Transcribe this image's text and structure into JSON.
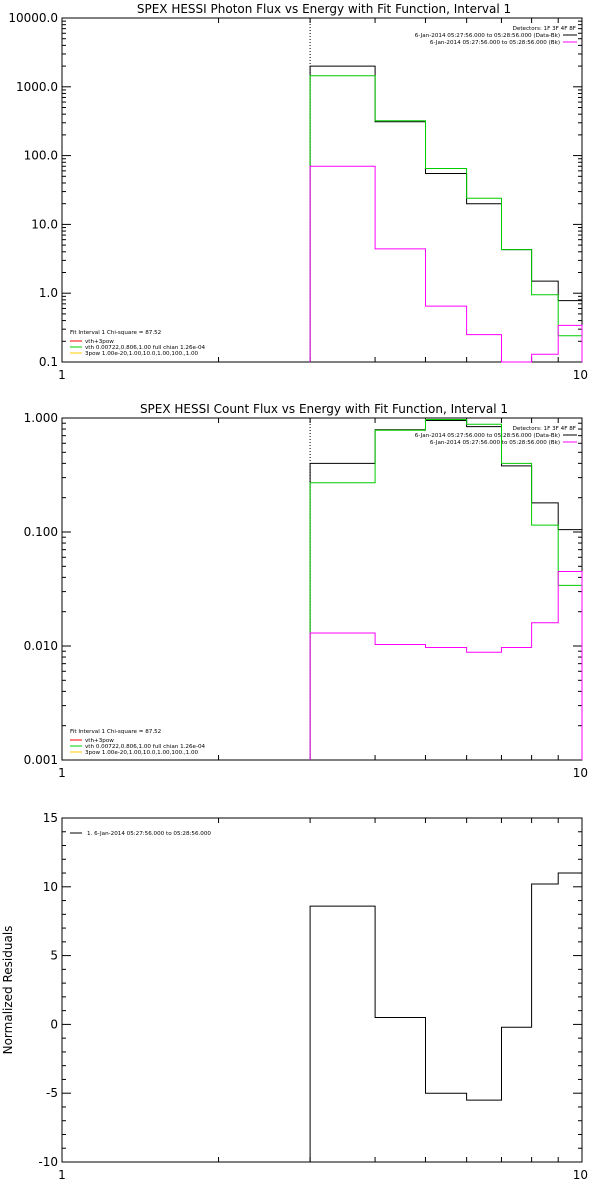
{
  "charts": [
    {
      "title": "SPEX HESSI Photon Flux vs Energy with Fit Function, Interval 1",
      "detectors": "Detectors: 1F 3F 4F 8F",
      "legend_right": [
        {
          "text": "6-Jan-2014 05:27:56.000 to 05:28:56.000 (Data-Bk)",
          "color": "#000000"
        },
        {
          "text": "6-Jan-2014 05:27:56.000 to 05:28:56.000 (Bk)",
          "color": "#ff00ff"
        }
      ],
      "legend_left": [
        {
          "text": "Fit Interval  1    Chi-square = 87.52",
          "color": null
        },
        {
          "text": "vth+3pow",
          "color": "#ff0000"
        },
        {
          "text": "vth 0.00722,0.806,1.00   full chian 1.26e-04",
          "color": "#00cc00"
        },
        {
          "text": "3pow 1.00e-20,1.00,10.0,1.00,100.,1.00",
          "color": "#ffcc00"
        }
      ],
      "ytick_labels": [
        "0.1",
        "1.0",
        "10.0",
        "100.0",
        "1000.0",
        "10000.0"
      ],
      "xtick_labels": [
        "1",
        "10"
      ]
    },
    {
      "title": "SPEX HESSI Count Flux vs Energy with Fit Function, Interval 1",
      "detectors": "Detectors: 1F 3F 4F 8F",
      "legend_right": [
        {
          "text": "6-Jan-2014 05:27:56.000 to 05:28:56.000 (Data-Bk)",
          "color": "#000000"
        },
        {
          "text": "6-Jan-2014 05:27:56.000 to 05:28:56.000 (Bk)",
          "color": "#ff00ff"
        }
      ],
      "legend_left": [
        {
          "text": "Fit Interval  1    Chi-square = 87.52",
          "color": null
        },
        {
          "text": "vth+3pow",
          "color": "#ff0000"
        },
        {
          "text": "vth 0.00722,0.806,1.00   full chian 1.26e-04",
          "color": "#00cc00"
        },
        {
          "text": "3pow 1.00e-20,1.00,10.0,1.00,100.,1.00",
          "color": "#ffcc00"
        }
      ],
      "ytick_labels": [
        "0.001",
        "0.010",
        "0.100",
        "1.000"
      ],
      "xtick_labels": [
        "1",
        "10"
      ]
    },
    {
      "title": "",
      "ylabel": "Normalized Residuals",
      "legend_left": [
        {
          "text": "1.  6-Jan-2014 05:27:56.000 to 05:28:56.000",
          "color": "#000000"
        }
      ],
      "ytick_labels": [
        "-10",
        "-5",
        "0",
        "5",
        "10",
        "15"
      ],
      "xtick_labels": [
        "1",
        "10"
      ]
    }
  ],
  "chart_data": [
    {
      "type": "line",
      "title": "SPEX HESSI Photon Flux vs Energy with Fit Function, Interval 1",
      "xscale": "log",
      "yscale": "log",
      "xlim": [
        1,
        10
      ],
      "ylim": [
        0.1,
        10000
      ],
      "marker_x": 3,
      "bin_edges": [
        3,
        4,
        5,
        6,
        7,
        8,
        9,
        10
      ],
      "series": [
        {
          "name": "6-Jan-2014 05:27:56.000 to 05:28:56.000 (Data-Bk)",
          "color": "#000000",
          "values": [
            2000,
            310,
            55,
            20,
            4.3,
            1.5,
            0.78
          ]
        },
        {
          "name": "vth 0.00722,0.806,1.00   full chian 1.26e-04",
          "color": "#00cc00",
          "values": [
            1450,
            320,
            65,
            24,
            4.3,
            0.95,
            0.24
          ]
        },
        {
          "name": "6-Jan-2014 05:27:56.000 to 05:28:56.000 (Bk)",
          "color": "#ff00ff",
          "values": [
            70,
            4.4,
            0.65,
            0.25,
            0.1,
            0.13,
            0.34
          ]
        }
      ]
    },
    {
      "type": "line",
      "title": "SPEX HESSI Count Flux vs Energy with Fit Function, Interval 1",
      "xscale": "log",
      "yscale": "log",
      "xlim": [
        1,
        10
      ],
      "ylim": [
        0.001,
        1.0
      ],
      "marker_x": 3,
      "bin_edges": [
        3,
        4,
        5,
        6,
        7,
        8,
        9,
        10
      ],
      "series": [
        {
          "name": "6-Jan-2014 05:27:56.000 to 05:28:56.000 (Data-Bk)",
          "color": "#000000",
          "values": [
            0.4,
            0.79,
            0.95,
            0.84,
            0.38,
            0.18,
            0.105
          ]
        },
        {
          "name": "vth 0.00722,0.806,1.00   full chian 1.26e-04",
          "color": "#00cc00",
          "values": [
            0.27,
            0.78,
            0.97,
            0.88,
            0.4,
            0.115,
            0.034
          ]
        },
        {
          "name": "6-Jan-2014 05:27:56.000 to 05:28:56.000 (Bk)",
          "color": "#ff00ff",
          "values": [
            0.013,
            0.0103,
            0.0097,
            0.0088,
            0.0097,
            0.016,
            0.045
          ]
        }
      ]
    },
    {
      "type": "line",
      "title": "",
      "ylabel": "Normalized Residuals",
      "xscale": "log",
      "yscale": "linear",
      "xlim": [
        1,
        10
      ],
      "ylim": [
        -10,
        15
      ],
      "bin_edges": [
        3,
        4,
        5,
        6,
        7,
        8,
        9,
        10
      ],
      "series": [
        {
          "name": "1.  6-Jan-2014 05:27:56.000 to 05:28:56.000",
          "color": "#000000",
          "values": [
            8.6,
            0.5,
            -5.0,
            -5.5,
            -0.2,
            10.2,
            11.0
          ]
        }
      ]
    }
  ]
}
